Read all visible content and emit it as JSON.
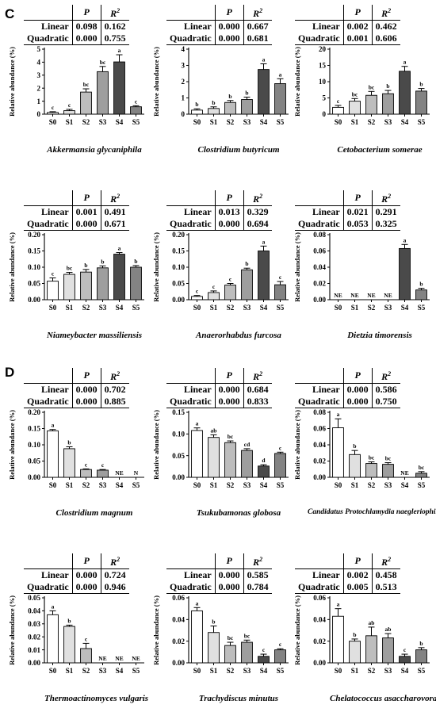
{
  "panels": [
    {
      "letter": "C"
    },
    {
      "letter": "D"
    }
  ],
  "stat_headers": {
    "p": "P",
    "r2_base": "R",
    "r2_sup": "2"
  },
  "stat_row_labels": {
    "linear": "Linear",
    "quadratic": "Quadratic"
  },
  "chart_data": [
    {
      "type": "bar",
      "species": "Akkermansia glycaniphila",
      "ylabel": "Relative abundance (%)",
      "categories": [
        "S0",
        "S1",
        "S2",
        "S3",
        "S4",
        "S5"
      ],
      "values": [
        0.13,
        0.27,
        1.7,
        3.27,
        4.02,
        0.57
      ],
      "errors": [
        0.06,
        0.1,
        0.25,
        0.4,
        0.55,
        0.08
      ],
      "letters": [
        "c",
        "c",
        "bc",
        "bc",
        "a",
        "c"
      ],
      "ylim": [
        0,
        5
      ],
      "yticks": [
        "0",
        "1",
        "2",
        "3",
        "4",
        "5"
      ],
      "colors": [
        "#ffffff",
        "#e0e0e0",
        "#bdbdbd",
        "#9e9e9e",
        "#4a4a4a",
        "#838383"
      ],
      "stats": {
        "linear": {
          "p": "0.098",
          "r2": "0.162"
        },
        "quadratic": {
          "p": "0.000",
          "r2": "0.755"
        }
      }
    },
    {
      "type": "bar",
      "species": "Clostridium butyricum",
      "ylabel": "Relative abundance (%)",
      "categories": [
        "S0",
        "S1",
        "S2",
        "S3",
        "S4",
        "S5"
      ],
      "values": [
        0.25,
        0.35,
        0.72,
        0.9,
        2.75,
        1.88
      ],
      "errors": [
        0.08,
        0.1,
        0.12,
        0.15,
        0.35,
        0.3
      ],
      "letters": [
        "b",
        "b",
        "b",
        "b",
        "a",
        "a"
      ],
      "ylim": [
        0,
        4
      ],
      "yticks": [
        "0",
        "1",
        "2",
        "3",
        "4"
      ],
      "colors": [
        "#ffffff",
        "#e0e0e0",
        "#bdbdbd",
        "#9e9e9e",
        "#4a4a4a",
        "#838383"
      ],
      "stats": {
        "linear": {
          "p": "0.000",
          "r2": "0.667"
        },
        "quadratic": {
          "p": "0.000",
          "r2": "0.681"
        }
      }
    },
    {
      "type": "bar",
      "species": "Cetobacterium somerae",
      "ylabel": "Relative abundance (%)",
      "categories": [
        "S0",
        "S1",
        "S2",
        "S3",
        "S4",
        "S5"
      ],
      "values": [
        2.1,
        4.0,
        5.8,
        6.3,
        13.2,
        7.1
      ],
      "errors": [
        0.6,
        0.8,
        1.2,
        1.0,
        1.5,
        0.8
      ],
      "letters": [
        "c",
        "bc",
        "bc",
        "b",
        "a",
        "b"
      ],
      "ylim": [
        0,
        20
      ],
      "yticks": [
        "0",
        "5",
        "10",
        "15",
        "20"
      ],
      "colors": [
        "#ffffff",
        "#e0e0e0",
        "#bdbdbd",
        "#9e9e9e",
        "#4a4a4a",
        "#838383"
      ],
      "stats": {
        "linear": {
          "p": "0.002",
          "r2": "0.462"
        },
        "quadratic": {
          "p": "0.001",
          "r2": "0.606"
        }
      }
    },
    {
      "type": "bar",
      "species": "Niameybacter massiliensis",
      "ylabel": "Relative abundance (%)",
      "categories": [
        "S0",
        "S1",
        "S2",
        "S3",
        "S4",
        "S5"
      ],
      "values": [
        0.057,
        0.078,
        0.085,
        0.098,
        0.14,
        0.1
      ],
      "errors": [
        0.01,
        0.006,
        0.008,
        0.006,
        0.005,
        0.005
      ],
      "letters": [
        "c",
        "bc",
        "b",
        "b",
        "a",
        "b"
      ],
      "ylim": [
        0,
        0.2
      ],
      "yticks": [
        "0.00",
        "0.05",
        "0.10",
        "0.15",
        "0.20"
      ],
      "colors": [
        "#ffffff",
        "#e0e0e0",
        "#bdbdbd",
        "#9e9e9e",
        "#4a4a4a",
        "#838383"
      ],
      "stats": {
        "linear": {
          "p": "0.001",
          "r2": "0.491"
        },
        "quadratic": {
          "p": "0.000",
          "r2": "0.671"
        }
      }
    },
    {
      "type": "bar",
      "species": "Anaerorhabdus furcosa",
      "ylabel": "Relative abundance (%)",
      "categories": [
        "S0",
        "S1",
        "S2",
        "S3",
        "S4",
        "S5"
      ],
      "values": [
        0.01,
        0.022,
        0.045,
        0.092,
        0.15,
        0.046
      ],
      "errors": [
        0.003,
        0.005,
        0.005,
        0.005,
        0.015,
        0.01
      ],
      "letters": [
        "c",
        "c",
        "c",
        "b",
        "a",
        "c"
      ],
      "ylim": [
        0,
        0.2
      ],
      "yticks": [
        "0.00",
        "0.05",
        "0.10",
        "0.15",
        "0.20"
      ],
      "colors": [
        "#ffffff",
        "#e0e0e0",
        "#bdbdbd",
        "#9e9e9e",
        "#4a4a4a",
        "#838383"
      ],
      "stats": {
        "linear": {
          "p": "0.013",
          "r2": "0.329"
        },
        "quadratic": {
          "p": "0.000",
          "r2": "0.694"
        }
      }
    },
    {
      "type": "bar",
      "species": "Dietzia timorensis",
      "ylabel": "Relative abundance (%)",
      "categories": [
        "S0",
        "S1",
        "S2",
        "S3",
        "S4",
        "S5"
      ],
      "values": [
        null,
        null,
        null,
        null,
        0.063,
        0.012
      ],
      "errors": [
        0,
        0,
        0,
        0,
        0.005,
        0.002
      ],
      "letters": [
        "NE",
        "NE",
        "NE",
        "NE",
        "a",
        "b"
      ],
      "ylim": [
        0,
        0.08
      ],
      "yticks": [
        "0.00",
        "0.02",
        "0.04",
        "0.06",
        "0.08"
      ],
      "colors": [
        "#ffffff",
        "#e0e0e0",
        "#bdbdbd",
        "#9e9e9e",
        "#4a4a4a",
        "#838383"
      ],
      "stats": {
        "linear": {
          "p": "0.021",
          "r2": "0.291"
        },
        "quadratic": {
          "p": "0.053",
          "r2": "0.325"
        }
      }
    },
    {
      "type": "bar",
      "species": "Clostridium magnum",
      "ylabel": "Relative abundance (%)",
      "categories": [
        "S0",
        "S1",
        "S2",
        "S3",
        "S4",
        "S5"
      ],
      "values": [
        0.143,
        0.088,
        0.024,
        0.022,
        null,
        null
      ],
      "errors": [
        0.004,
        0.006,
        0.002,
        0.002,
        0,
        0
      ],
      "letters": [
        "a",
        "b",
        "c",
        "c",
        "NE",
        "N"
      ],
      "ylim": [
        0,
        0.2
      ],
      "yticks": [
        "0.00",
        "0.05",
        "0.10",
        "0.15",
        "0.20"
      ],
      "colors": [
        "#ffffff",
        "#e0e0e0",
        "#bdbdbd",
        "#9e9e9e",
        "#4a4a4a",
        "#838383"
      ],
      "stats": {
        "linear": {
          "p": "0.000",
          "r2": "0.702"
        },
        "quadratic": {
          "p": "0.000",
          "r2": "0.885"
        }
      }
    },
    {
      "type": "bar",
      "species": "Tsukubamonas globosa",
      "ylabel": "Relative abundance (%)",
      "categories": [
        "S0",
        "S1",
        "S2",
        "S3",
        "S4",
        "S5"
      ],
      "values": [
        0.108,
        0.092,
        0.08,
        0.062,
        0.026,
        0.055
      ],
      "errors": [
        0.006,
        0.006,
        0.004,
        0.004,
        0.003,
        0.003
      ],
      "letters": [
        "a",
        "ab",
        "bc",
        "cd",
        "d",
        "c"
      ],
      "ylim": [
        0,
        0.15
      ],
      "yticks": [
        "0.00",
        "0.05",
        "0.10",
        "0.15"
      ],
      "colors": [
        "#ffffff",
        "#e0e0e0",
        "#bdbdbd",
        "#9e9e9e",
        "#4a4a4a",
        "#838383"
      ],
      "stats": {
        "linear": {
          "p": "0.000",
          "r2": "0.684"
        },
        "quadratic": {
          "p": "0.000",
          "r2": "0.833"
        }
      }
    },
    {
      "type": "bar",
      "species": "Candidatus Protochlamydia naegleriophila",
      "ylabel": "Relative abundance (%)",
      "categories": [
        "S0",
        "S1",
        "S2",
        "S3",
        "S4",
        "S5"
      ],
      "values": [
        0.061,
        0.028,
        0.017,
        0.016,
        null,
        0.005
      ],
      "errors": [
        0.011,
        0.005,
        0.002,
        0.002,
        0,
        0.002
      ],
      "letters": [
        "a",
        "b",
        "bc",
        "bc",
        "NE",
        "bc"
      ],
      "ylim": [
        0,
        0.08
      ],
      "yticks": [
        "0.00",
        "0.02",
        "0.04",
        "0.06",
        "0.08"
      ],
      "colors": [
        "#ffffff",
        "#e0e0e0",
        "#bdbdbd",
        "#9e9e9e",
        "#4a4a4a",
        "#838383"
      ],
      "stats": {
        "linear": {
          "p": "0.000",
          "r2": "0.586"
        },
        "quadratic": {
          "p": "0.000",
          "r2": "0.750"
        }
      }
    },
    {
      "type": "bar",
      "species": "Thermoactinomyces vulgaris",
      "ylabel": "Relative abundance (%)",
      "categories": [
        "S0",
        "S1",
        "S2",
        "S3",
        "S4",
        "S5"
      ],
      "values": [
        0.037,
        0.028,
        0.011,
        null,
        null,
        null
      ],
      "errors": [
        0.003,
        0.001,
        0.004,
        0,
        0,
        0
      ],
      "letters": [
        "a",
        "b",
        "c",
        "NE",
        "NE",
        "NE"
      ],
      "ylim": [
        0,
        0.05
      ],
      "yticks": [
        "0.00",
        "0.01",
        "0.02",
        "0.03",
        "0.04",
        "0.05"
      ],
      "colors": [
        "#ffffff",
        "#e0e0e0",
        "#bdbdbd",
        "#9e9e9e",
        "#4a4a4a",
        "#838383"
      ],
      "stats": {
        "linear": {
          "p": "0.000",
          "r2": "0.724"
        },
        "quadratic": {
          "p": "0.000",
          "r2": "0.946"
        }
      }
    },
    {
      "type": "bar",
      "species": "Trachydiscus minutus",
      "ylabel": "Relative abundance (%)",
      "categories": [
        "S0",
        "S1",
        "S2",
        "S3",
        "S4",
        "S5"
      ],
      "values": [
        0.048,
        0.028,
        0.016,
        0.019,
        0.006,
        0.012
      ],
      "errors": [
        0.003,
        0.006,
        0.003,
        0.002,
        0.002,
        0.001
      ],
      "letters": [
        "a",
        "b",
        "bc",
        "bc",
        "c",
        "c"
      ],
      "ylim": [
        0,
        0.06
      ],
      "yticks": [
        "0.00",
        "0.02",
        "0.04",
        "0.06"
      ],
      "colors": [
        "#ffffff",
        "#e0e0e0",
        "#bdbdbd",
        "#9e9e9e",
        "#4a4a4a",
        "#838383"
      ],
      "stats": {
        "linear": {
          "p": "0.000",
          "r2": "0.585"
        },
        "quadratic": {
          "p": "0.000",
          "r2": "0.784"
        }
      }
    },
    {
      "type": "bar",
      "species": "Chelatococcus asaccharovorans",
      "ylabel": "Relative abundance (%)",
      "categories": [
        "S0",
        "S1",
        "S2",
        "S3",
        "S4",
        "S5"
      ],
      "values": [
        0.043,
        0.02,
        0.025,
        0.023,
        0.006,
        0.012
      ],
      "errors": [
        0.007,
        0.002,
        0.008,
        0.004,
        0.002,
        0.002
      ],
      "letters": [
        "a",
        "b",
        "ab",
        "ab",
        "c",
        "b"
      ],
      "ylim": [
        0,
        0.06
      ],
      "yticks": [
        "0.00",
        "0.02",
        "0.04",
        "0.06"
      ],
      "colors": [
        "#ffffff",
        "#e0e0e0",
        "#bdbdbd",
        "#9e9e9e",
        "#4a4a4a",
        "#838383"
      ],
      "stats": {
        "linear": {
          "p": "0.002",
          "r2": "0.458"
        },
        "quadratic": {
          "p": "0.005",
          "r2": "0.513"
        }
      }
    }
  ]
}
